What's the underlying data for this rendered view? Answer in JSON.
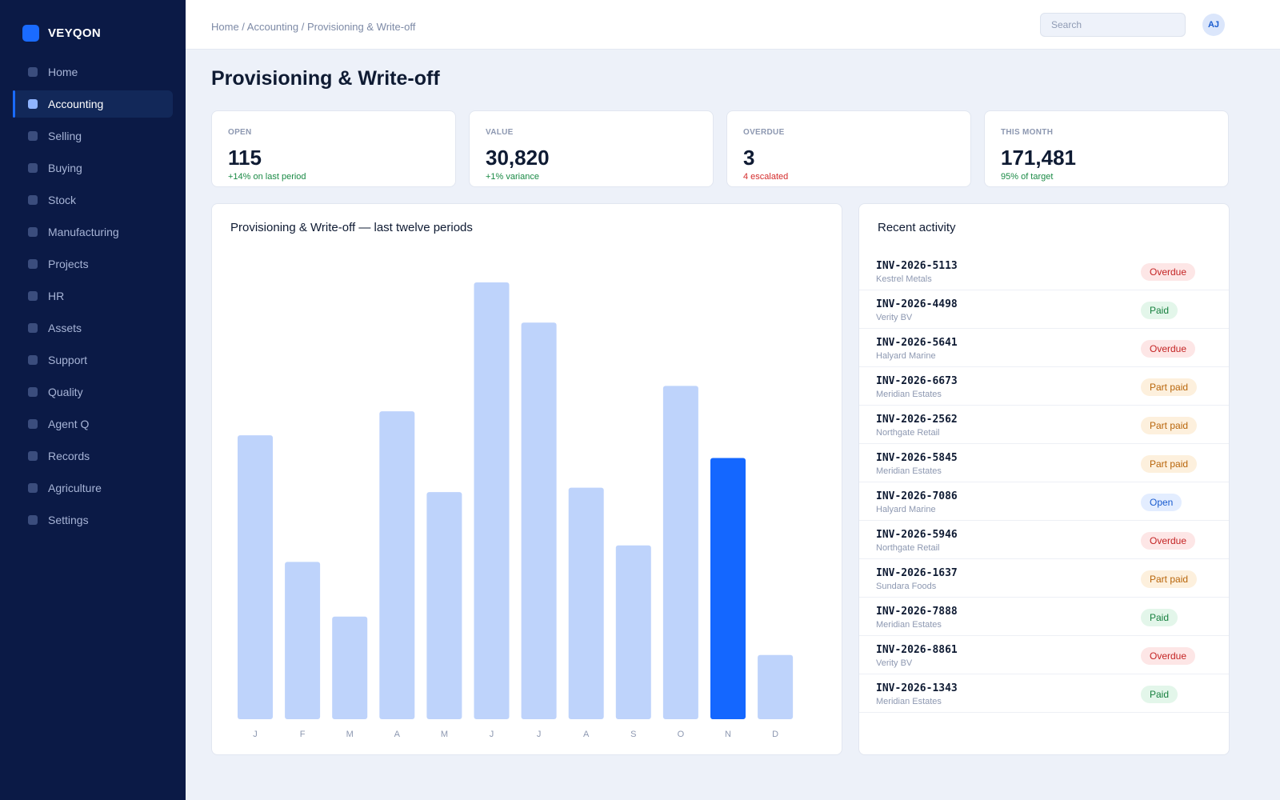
{
  "app": {
    "name": "VEYQON"
  },
  "sidebar": {
    "items": [
      {
        "label": "Home",
        "active": false
      },
      {
        "label": "Accounting",
        "active": true
      },
      {
        "label": "Selling",
        "active": false
      },
      {
        "label": "Buying",
        "active": false
      },
      {
        "label": "Stock",
        "active": false
      },
      {
        "label": "Manufacturing",
        "active": false
      },
      {
        "label": "Projects",
        "active": false
      },
      {
        "label": "HR",
        "active": false
      },
      {
        "label": "Assets",
        "active": false
      },
      {
        "label": "Support",
        "active": false
      },
      {
        "label": "Quality",
        "active": false
      },
      {
        "label": "Agent Q",
        "active": false
      },
      {
        "label": "Records",
        "active": false
      },
      {
        "label": "Agriculture",
        "active": false
      },
      {
        "label": "Settings",
        "active": false
      }
    ]
  },
  "topbar": {
    "breadcrumb": "Home / Accounting / Provisioning & Write-off",
    "search_placeholder": "Search",
    "avatar_initials": "AJ"
  },
  "page": {
    "title": "Provisioning & Write-off"
  },
  "kpis": [
    {
      "label": "OPEN",
      "value": "115",
      "delta": "+14% on last period",
      "trend": "up"
    },
    {
      "label": "VALUE",
      "value": "30,820",
      "delta": "+1% variance",
      "trend": "up"
    },
    {
      "label": "OVERDUE",
      "value": "3",
      "delta": "4 escalated",
      "trend": "down"
    },
    {
      "label": "THIS MONTH",
      "value": "171,481",
      "delta": "95% of target",
      "trend": "up"
    }
  ],
  "chart": {
    "title": "Provisioning & Write-off — last twelve periods"
  },
  "chart_data": {
    "type": "bar",
    "title": "Provisioning & Write-off — last twelve periods",
    "categories": [
      "J",
      "F",
      "M",
      "A",
      "M",
      "J",
      "J",
      "A",
      "S",
      "O",
      "N",
      "D"
    ],
    "values": [
      65,
      36,
      23.5,
      70.5,
      52,
      100,
      90.8,
      53,
      39.8,
      76.3,
      59.8,
      14.7
    ],
    "highlight_index": 10,
    "ylim": [
      0,
      100
    ],
    "grid": false,
    "colors": {
      "bar": "#bed3fb",
      "highlight": "#1467ff",
      "tick": "#8d98b1"
    }
  },
  "activity": {
    "title": "Recent activity",
    "items": [
      {
        "id": "INV-2026-5113",
        "customer": "Kestrel Metals",
        "status": "Overdue"
      },
      {
        "id": "INV-2026-4498",
        "customer": "Verity BV",
        "status": "Paid"
      },
      {
        "id": "INV-2026-5641",
        "customer": "Halyard Marine",
        "status": "Overdue"
      },
      {
        "id": "INV-2026-6673",
        "customer": "Meridian Estates",
        "status": "Part paid"
      },
      {
        "id": "INV-2026-2562",
        "customer": "Northgate Retail",
        "status": "Part paid"
      },
      {
        "id": "INV-2026-5845",
        "customer": "Meridian Estates",
        "status": "Part paid"
      },
      {
        "id": "INV-2026-7086",
        "customer": "Halyard Marine",
        "status": "Open"
      },
      {
        "id": "INV-2026-5946",
        "customer": "Northgate Retail",
        "status": "Overdue"
      },
      {
        "id": "INV-2026-1637",
        "customer": "Sundara Foods",
        "status": "Part paid"
      },
      {
        "id": "INV-2026-7888",
        "customer": "Meridian Estates",
        "status": "Paid"
      },
      {
        "id": "INV-2026-8861",
        "customer": "Verity BV",
        "status": "Overdue"
      },
      {
        "id": "INV-2026-1343",
        "customer": "Meridian Estates",
        "status": "Paid"
      }
    ]
  }
}
